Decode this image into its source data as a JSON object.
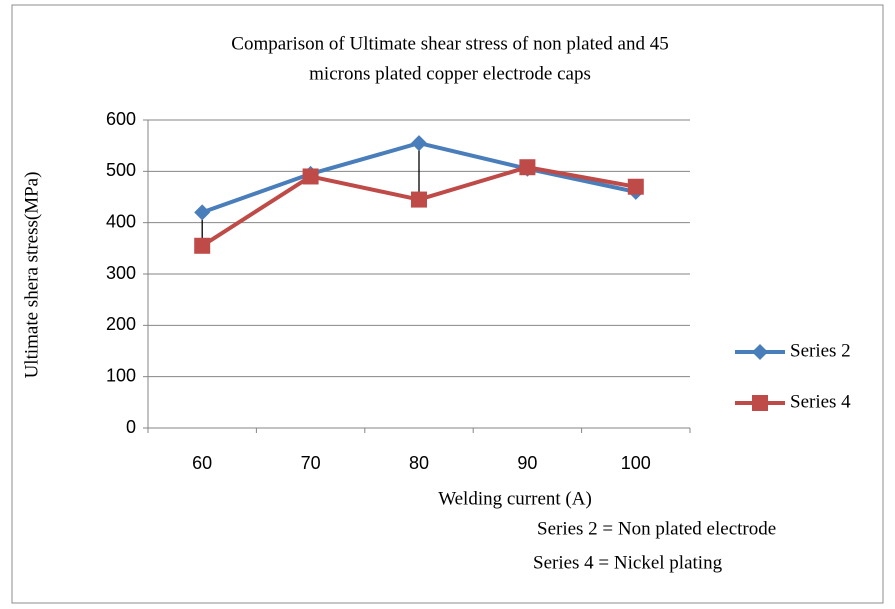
{
  "chart_data": {
    "type": "line",
    "title": [
      "Comparison of Ultimate shear stress of non plated and 45",
      "microns plated copper electrode caps"
    ],
    "x_label": "Welding current (A)",
    "y_label": "Ultimate shera stress(MPa)",
    "categories": [
      "60",
      "70",
      "80",
      "90",
      "100"
    ],
    "series": [
      {
        "name": "Series 2",
        "color": "#4a7ebb",
        "marker": "diamond",
        "values": [
          420,
          495,
          555,
          505,
          460
        ]
      },
      {
        "name": "Series 4",
        "color": "#be4b48",
        "marker": "square",
        "values": [
          355,
          490,
          445,
          508,
          470
        ]
      }
    ],
    "ylim": [
      0,
      600
    ],
    "yticks": [
      0,
      100,
      200,
      300,
      400,
      500,
      600
    ],
    "grid": true,
    "high_low_lines": true,
    "legend": "right",
    "annotations": [
      "Series 2 =  Non plated electrode",
      "Series 4 = Nickel plating"
    ]
  }
}
